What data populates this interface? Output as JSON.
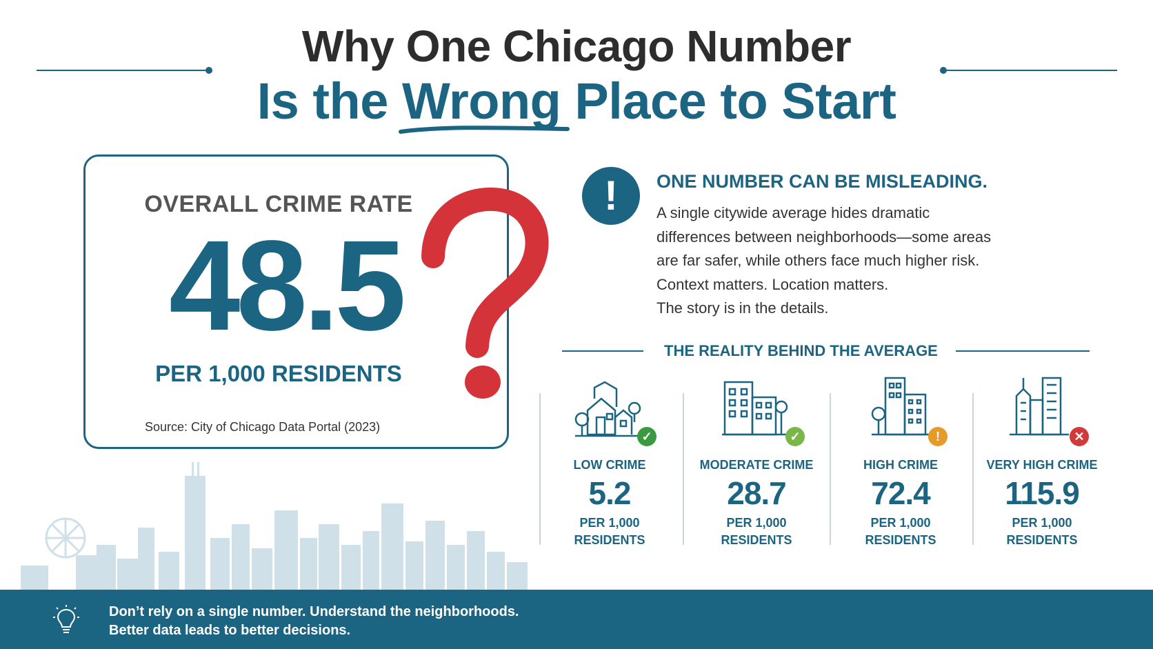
{
  "header": {
    "title_line1": "Why One Chicago Number",
    "title_line2_pre": "Is the ",
    "title_line2_highlight": "Wrong",
    "title_line2_post": " Place to Start"
  },
  "rate_card": {
    "label": "OVERALL CRIME RATE",
    "value": "48.5",
    "unit": "PER 1,000 RESIDENTS",
    "source": "Source: City of Chicago Data Portal (2023)"
  },
  "callout": {
    "icon": "exclamation-icon",
    "title": "ONE NUMBER CAN BE MISLEADING.",
    "body_lines": [
      "A single citywide average hides dramatic",
      "differences between neighborhoods—some areas",
      "are far safer, while others face much higher risk.",
      "Context matters. Location matters.",
      "The story is in the details."
    ]
  },
  "reality": {
    "heading": "THE REALITY BEHIND THE AVERAGE",
    "categories": [
      {
        "label": "LOW CRIME",
        "value": "5.2",
        "unit1": "PER 1,000",
        "unit2": "RESIDENTS",
        "status": "check",
        "status_color": "#3a9a3f",
        "icon": "houses-icon"
      },
      {
        "label": "MODERATE CRIME",
        "value": "28.7",
        "unit1": "PER 1,000",
        "unit2": "RESIDENTS",
        "status": "check",
        "status_color": "#7ab648",
        "icon": "apartments-icon"
      },
      {
        "label": "HIGH CRIME",
        "value": "72.4",
        "unit1": "PER 1,000",
        "unit2": "RESIDENTS",
        "status": "!",
        "status_color": "#e69a27",
        "icon": "mid-rise-icon"
      },
      {
        "label": "VERY HIGH CRIME",
        "value": "115.9",
        "unit1": "PER 1,000",
        "unit2": "RESIDENTS",
        "status": "x",
        "status_color": "#d23a3a",
        "icon": "skyscrapers-icon"
      }
    ]
  },
  "footer": {
    "line1": "Don’t rely on a single number. Understand the neighborhoods.",
    "line2": "Better data leads to better decisions.",
    "icon": "lightbulb-icon"
  },
  "colors": {
    "primary": "#1b6482",
    "accent_red": "#d4333a",
    "skyline": "#c5d9e3"
  }
}
